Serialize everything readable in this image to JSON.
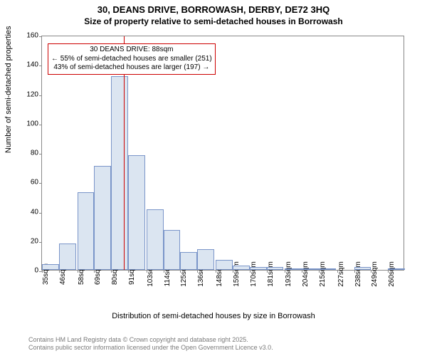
{
  "title": {
    "line1": "30, DEANS DRIVE, BORROWASH, DERBY, DE72 3HQ",
    "line2": "Size of property relative to semi-detached houses in Borrowash"
  },
  "chart": {
    "type": "histogram",
    "ylabel": "Number of semi-detached properties",
    "xlabel": "Distribution of semi-detached houses by size in Borrowash",
    "ylim": [
      0,
      160
    ],
    "ytick_step": 20,
    "yticks": [
      0,
      20,
      40,
      60,
      80,
      100,
      120,
      140,
      160
    ],
    "bin_width_sqm": 11,
    "xticks_sqm": [
      35,
      46,
      58,
      69,
      80,
      91,
      103,
      114,
      125,
      136,
      148,
      159,
      170,
      181,
      193,
      204,
      215,
      227,
      238,
      249,
      260
    ],
    "xtick_suffix": "sqm",
    "bars": [
      {
        "x_sqm": 35,
        "count": 4
      },
      {
        "x_sqm": 46,
        "count": 18
      },
      {
        "x_sqm": 58,
        "count": 53
      },
      {
        "x_sqm": 69,
        "count": 71
      },
      {
        "x_sqm": 80,
        "count": 132
      },
      {
        "x_sqm": 91,
        "count": 78
      },
      {
        "x_sqm": 103,
        "count": 41
      },
      {
        "x_sqm": 114,
        "count": 27
      },
      {
        "x_sqm": 125,
        "count": 12
      },
      {
        "x_sqm": 136,
        "count": 14
      },
      {
        "x_sqm": 148,
        "count": 7
      },
      {
        "x_sqm": 159,
        "count": 3
      },
      {
        "x_sqm": 170,
        "count": 2
      },
      {
        "x_sqm": 181,
        "count": 2
      },
      {
        "x_sqm": 193,
        "count": 1
      },
      {
        "x_sqm": 204,
        "count": 1
      },
      {
        "x_sqm": 215,
        "count": 1
      },
      {
        "x_sqm": 227,
        "count": 0
      },
      {
        "x_sqm": 238,
        "count": 2
      },
      {
        "x_sqm": 249,
        "count": 0
      },
      {
        "x_sqm": 260,
        "count": 1
      }
    ],
    "bar_fill_color": "#dbe5f1",
    "bar_border_color": "#7a95c9",
    "axis_color": "#888888",
    "background_color": "#ffffff",
    "reference_line": {
      "x_sqm": 88,
      "color": "#cc0000"
    },
    "callout": {
      "border_color": "#cc0000",
      "line1": "30 DEANS DRIVE: 88sqm",
      "line2": "← 55% of semi-detached houses are smaller (251)",
      "line3": "43% of semi-detached houses are larger (197) →"
    }
  },
  "footer": {
    "line1": "Contains HM Land Registry data © Crown copyright and database right 2025.",
    "line2": "Contains public sector information licensed under the Open Government Licence v3.0."
  }
}
